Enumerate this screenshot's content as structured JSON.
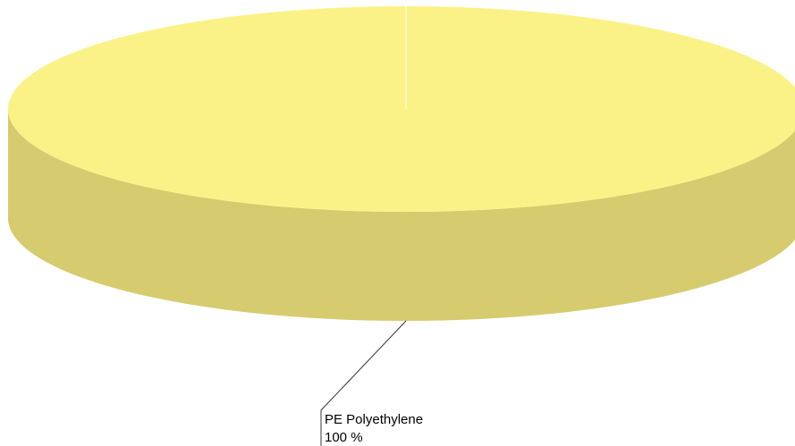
{
  "chart_data": {
    "type": "pie",
    "title": "",
    "slices": [
      {
        "label": "PE Polyethylene",
        "value": 100,
        "value_label": "100 %",
        "color": "#FBF287",
        "side_color": "#D6CB6E"
      }
    ]
  }
}
